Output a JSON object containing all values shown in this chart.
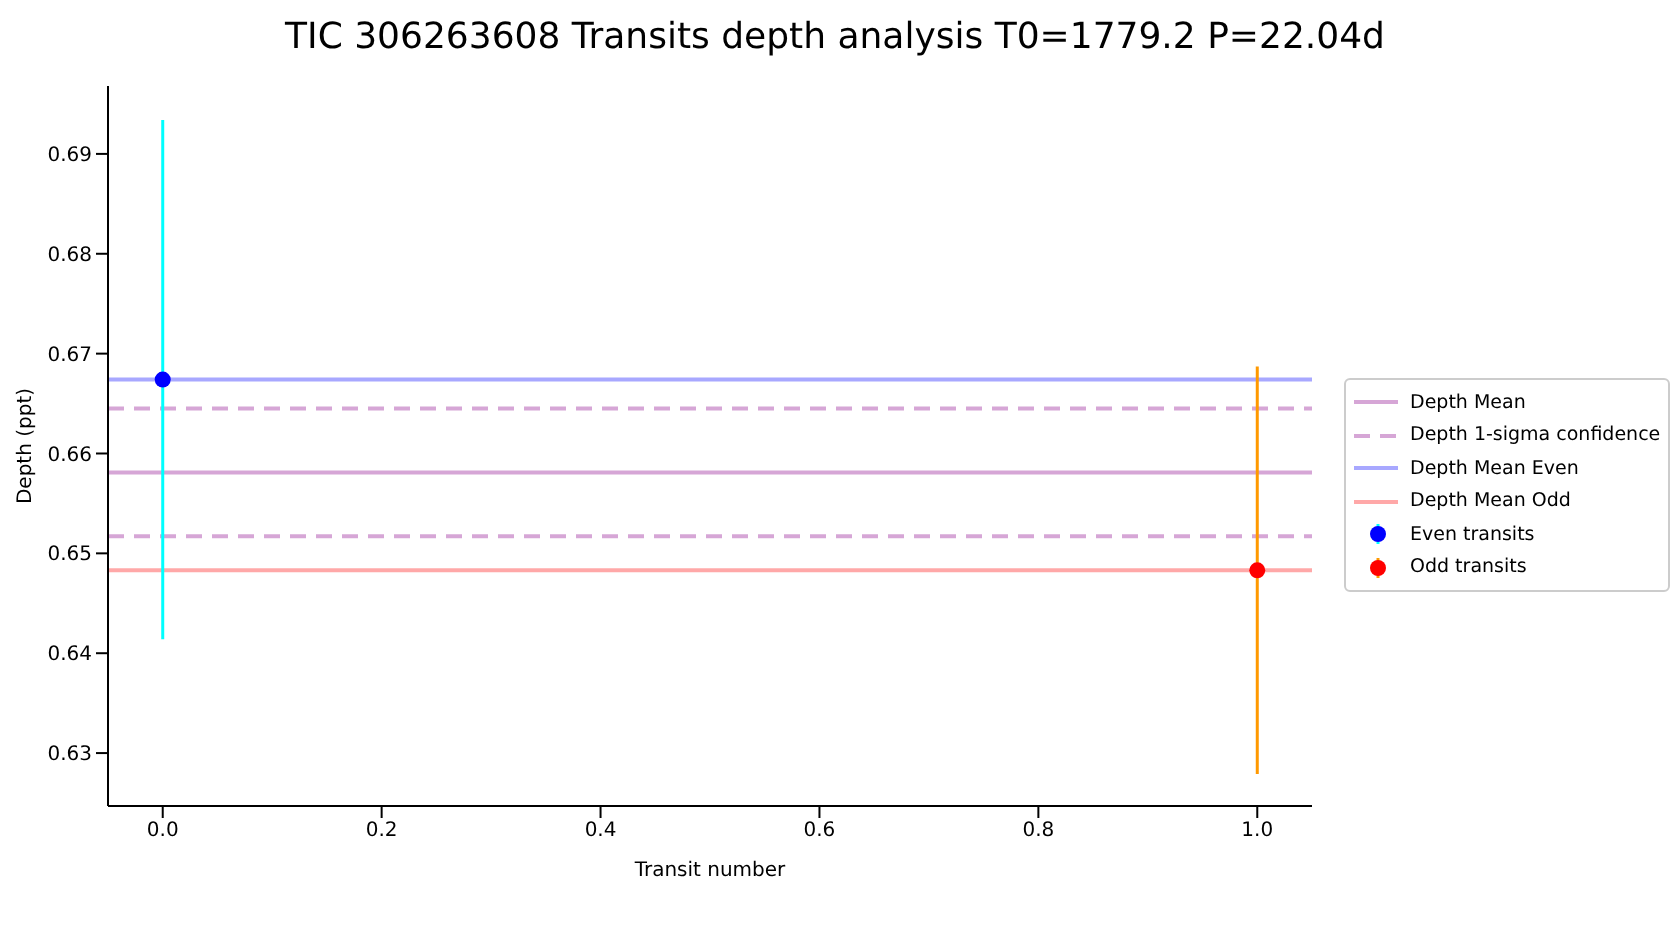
{
  "chart_data": {
    "type": "scatter",
    "title": "TIC 306263608 Transits depth analysis T0=1779.2 P=22.04d",
    "xlabel": "Transit number",
    "ylabel": "Depth (ppt)",
    "series": [
      {
        "name": "Even transits",
        "color": "#0000ff",
        "x": [
          0
        ],
        "values": [
          0.6674
        ],
        "errors": [
          0.026
        ]
      },
      {
        "name": "Odd transits",
        "color": "#ff0000",
        "x": [
          1
        ],
        "values": [
          0.6483
        ],
        "errors": [
          0.0204
        ]
      }
    ],
    "ref_lines": [
      {
        "axis": "y",
        "value": 0.6581,
        "label": "Depth Mean",
        "color": "#d6a6d6",
        "line_style": "solid"
      },
      {
        "axis": "y",
        "value": 0.6645,
        "label": "Depth 1-sigma confidence",
        "color": "#d6a6d6",
        "line_style": "dashed"
      },
      {
        "axis": "y",
        "value": 0.6517,
        "label": null,
        "color": "#d6a6d6",
        "line_style": "dashed"
      },
      {
        "axis": "y",
        "value": 0.6674,
        "label": "Depth Mean Even",
        "color": "#a8a8ff",
        "line_style": "solid"
      },
      {
        "axis": "y",
        "value": 0.6483,
        "label": "Depth Mean Odd",
        "color": "#ffa8a8",
        "line_style": "solid"
      }
    ],
    "xlim": [
      -0.05,
      1.05
    ],
    "xticks": [
      {
        "value": 0,
        "label": "0.0"
      },
      {
        "value": 0.2,
        "label": "0.2"
      },
      {
        "value": 0.4,
        "label": "0.4"
      },
      {
        "value": 0.6,
        "label": "0.6"
      },
      {
        "value": 0.8,
        "label": "0.8"
      },
      {
        "value": 1,
        "label": "1.0"
      }
    ],
    "ylim": [
      0.6247,
      0.6968
    ],
    "yticks": [
      0.63,
      0.64,
      0.65,
      0.66,
      0.67,
      0.68,
      0.69
    ],
    "grid": false,
    "legend": "right",
    "marker": "circle"
  }
}
